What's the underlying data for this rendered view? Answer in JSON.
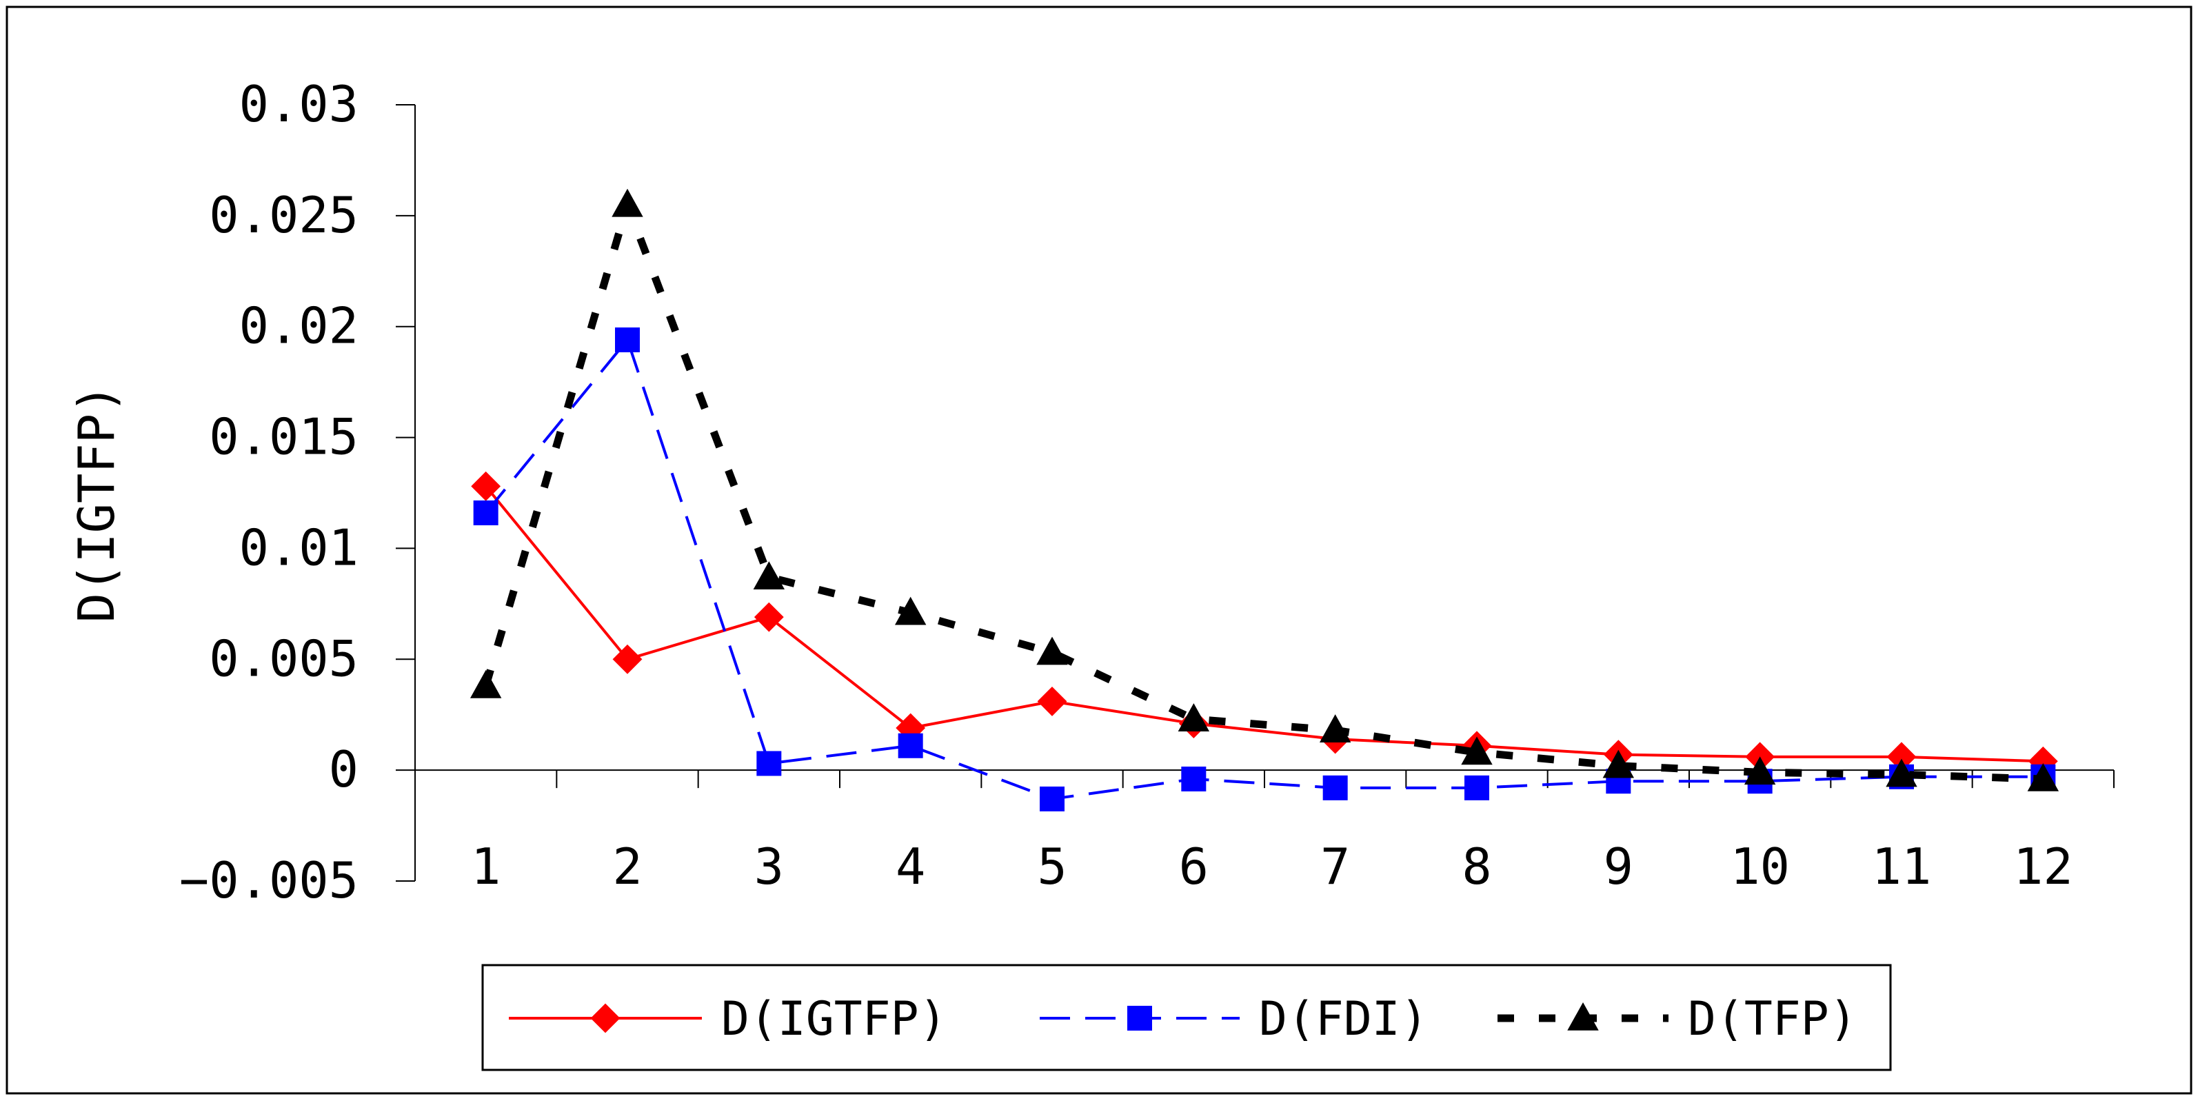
{
  "chart_data": {
    "type": "line",
    "title": "",
    "xlabel": "",
    "ylabel": "D(IGTFP)",
    "categories": [
      "1",
      "2",
      "3",
      "4",
      "5",
      "6",
      "7",
      "8",
      "9",
      "10",
      "11",
      "12"
    ],
    "y_ticks": [
      "0.03",
      "0.025",
      "0.02",
      "0.015",
      "0.01",
      "0.005",
      "0",
      "-0.005"
    ],
    "ylim": [
      -0.005,
      0.03
    ],
    "grid": false,
    "legend_position": "bottom",
    "series": [
      {
        "name": "D(IGTFP)",
        "color": "#ff0000",
        "line_style": "solid",
        "marker": "diamond",
        "values": [
          0.0128,
          0.005,
          0.0069,
          0.0019,
          0.0031,
          0.0021,
          0.0014,
          0.0011,
          0.0007,
          0.0006,
          0.0006,
          0.0004
        ]
      },
      {
        "name": "D(FDI)",
        "color": "#0000ff",
        "line_style": "dashed",
        "marker": "square",
        "values": [
          0.0116,
          0.0194,
          0.0003,
          0.0011,
          -0.0013,
          -0.0004,
          -0.0008,
          -0.0008,
          -0.0005,
          -0.0005,
          -0.0003,
          -0.0003
        ]
      },
      {
        "name": "D(TFP)",
        "color": "#000000",
        "line_style": "bold-dashed",
        "marker": "triangle",
        "values": [
          0.0038,
          0.0255,
          0.0087,
          0.0071,
          0.0053,
          0.0023,
          0.0018,
          0.0008,
          0.0002,
          -0.0001,
          -0.0002,
          -0.0004
        ]
      }
    ]
  }
}
